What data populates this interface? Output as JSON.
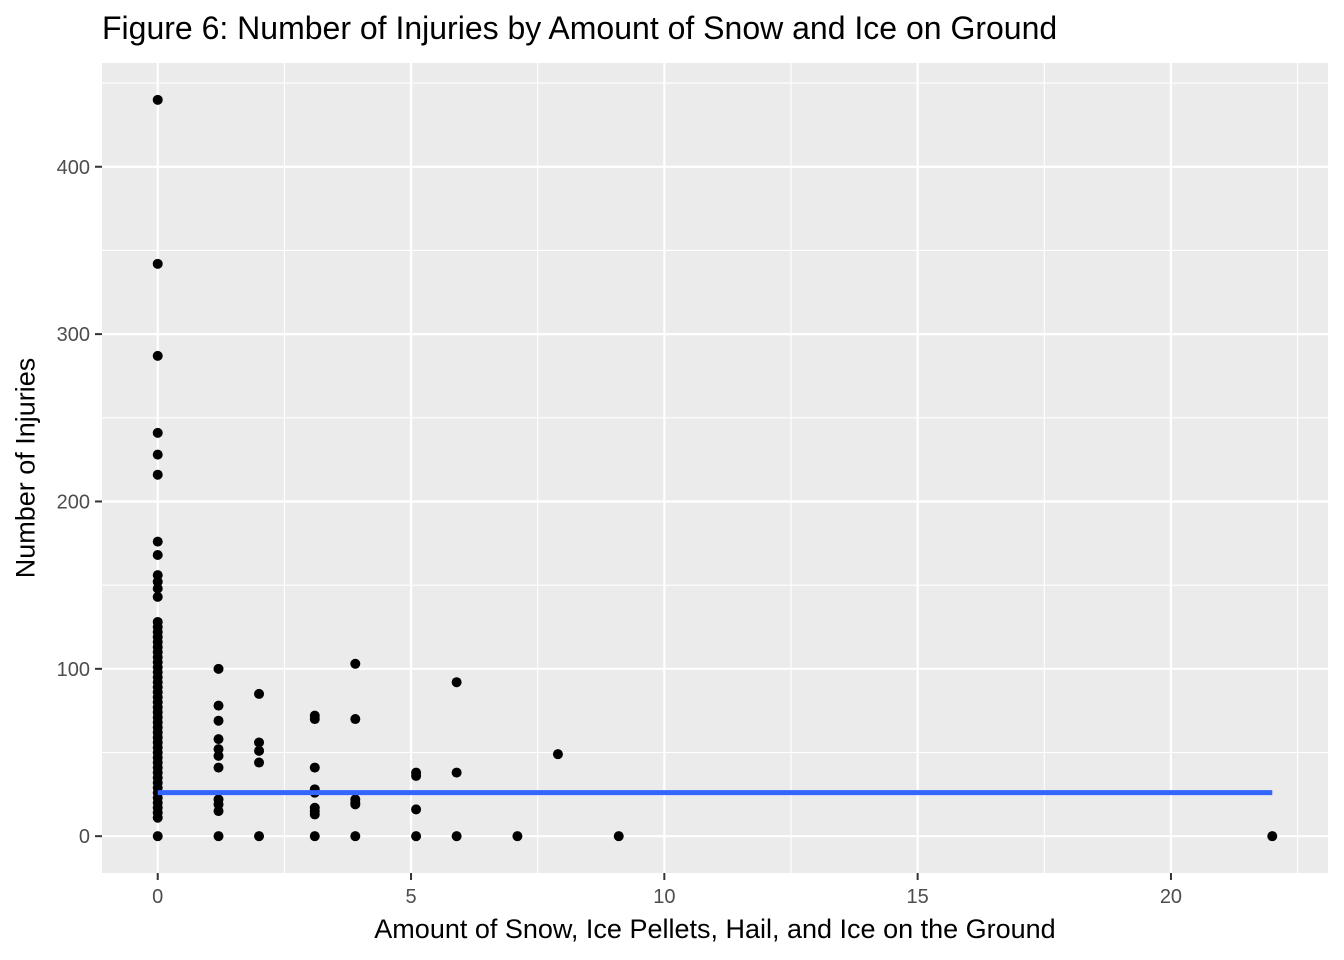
{
  "chart_data": {
    "type": "scatter",
    "title": "Figure 6: Number of Injuries by Amount of Snow and Ice on Ground",
    "xlabel": "Amount of Snow, Ice Pellets, Hail, and Ice on the Ground",
    "ylabel": "Number of Injuries",
    "xlim": [
      -1.1,
      23.1
    ],
    "ylim": [
      -22,
      462
    ],
    "x_ticks": [
      0,
      5,
      10,
      15,
      20
    ],
    "y_ticks": [
      0,
      100,
      200,
      300,
      400
    ],
    "x_tick_labels": [
      "0",
      "5",
      "10",
      "15",
      "20"
    ],
    "y_tick_labels": [
      "0",
      "100",
      "200",
      "300",
      "400"
    ],
    "grid": true,
    "legend": "none",
    "background_color": "#ebebeb",
    "point_color": "#000000",
    "trend_color": "#3366ff",
    "points": [
      {
        "x": 0,
        "y": 440
      },
      {
        "x": 0,
        "y": 342
      },
      {
        "x": 0,
        "y": 287
      },
      {
        "x": 0,
        "y": 241
      },
      {
        "x": 0,
        "y": 228
      },
      {
        "x": 0,
        "y": 216
      },
      {
        "x": 0,
        "y": 176
      },
      {
        "x": 0,
        "y": 168
      },
      {
        "x": 0,
        "y": 156
      },
      {
        "x": 0,
        "y": 152
      },
      {
        "x": 0,
        "y": 148
      },
      {
        "x": 0,
        "y": 143
      },
      {
        "x": 0,
        "y": 128
      },
      {
        "x": 0,
        "y": 125
      },
      {
        "x": 0,
        "y": 122
      },
      {
        "x": 0,
        "y": 119
      },
      {
        "x": 0,
        "y": 116
      },
      {
        "x": 0,
        "y": 113
      },
      {
        "x": 0,
        "y": 110
      },
      {
        "x": 0,
        "y": 107
      },
      {
        "x": 0,
        "y": 104
      },
      {
        "x": 0,
        "y": 101
      },
      {
        "x": 0,
        "y": 98
      },
      {
        "x": 0,
        "y": 95
      },
      {
        "x": 0,
        "y": 92
      },
      {
        "x": 0,
        "y": 89
      },
      {
        "x": 0,
        "y": 86
      },
      {
        "x": 0,
        "y": 83
      },
      {
        "x": 0,
        "y": 80
      },
      {
        "x": 0,
        "y": 77
      },
      {
        "x": 0,
        "y": 74
      },
      {
        "x": 0,
        "y": 71
      },
      {
        "x": 0,
        "y": 68
      },
      {
        "x": 0,
        "y": 65
      },
      {
        "x": 0,
        "y": 62
      },
      {
        "x": 0,
        "y": 59
      },
      {
        "x": 0,
        "y": 56
      },
      {
        "x": 0,
        "y": 53
      },
      {
        "x": 0,
        "y": 50
      },
      {
        "x": 0,
        "y": 47
      },
      {
        "x": 0,
        "y": 44
      },
      {
        "x": 0,
        "y": 41
      },
      {
        "x": 0,
        "y": 38
      },
      {
        "x": 0,
        "y": 35
      },
      {
        "x": 0,
        "y": 32
      },
      {
        "x": 0,
        "y": 29
      },
      {
        "x": 0,
        "y": 26
      },
      {
        "x": 0,
        "y": 23
      },
      {
        "x": 0,
        "y": 20
      },
      {
        "x": 0,
        "y": 17
      },
      {
        "x": 0,
        "y": 14
      },
      {
        "x": 0,
        "y": 11
      },
      {
        "x": 0,
        "y": 0
      },
      {
        "x": 1.2,
        "y": 100
      },
      {
        "x": 1.2,
        "y": 78
      },
      {
        "x": 1.2,
        "y": 69
      },
      {
        "x": 1.2,
        "y": 58
      },
      {
        "x": 1.2,
        "y": 52
      },
      {
        "x": 1.2,
        "y": 48
      },
      {
        "x": 1.2,
        "y": 41
      },
      {
        "x": 1.2,
        "y": 22
      },
      {
        "x": 1.2,
        "y": 19
      },
      {
        "x": 1.2,
        "y": 15
      },
      {
        "x": 1.2,
        "y": 0
      },
      {
        "x": 2.0,
        "y": 85
      },
      {
        "x": 2.0,
        "y": 56
      },
      {
        "x": 2.0,
        "y": 51
      },
      {
        "x": 2.0,
        "y": 44
      },
      {
        "x": 2.0,
        "y": 0
      },
      {
        "x": 3.1,
        "y": 72
      },
      {
        "x": 3.1,
        "y": 70
      },
      {
        "x": 3.1,
        "y": 41
      },
      {
        "x": 3.1,
        "y": 28
      },
      {
        "x": 3.1,
        "y": 26
      },
      {
        "x": 3.1,
        "y": 17
      },
      {
        "x": 3.1,
        "y": 15
      },
      {
        "x": 3.1,
        "y": 13
      },
      {
        "x": 3.1,
        "y": 0
      },
      {
        "x": 3.9,
        "y": 103
      },
      {
        "x": 3.9,
        "y": 70
      },
      {
        "x": 3.9,
        "y": 22
      },
      {
        "x": 3.9,
        "y": 20
      },
      {
        "x": 3.9,
        "y": 19
      },
      {
        "x": 3.9,
        "y": 0
      },
      {
        "x": 5.1,
        "y": 38
      },
      {
        "x": 5.1,
        "y": 36
      },
      {
        "x": 5.1,
        "y": 16
      },
      {
        "x": 5.1,
        "y": 0
      },
      {
        "x": 5.9,
        "y": 92
      },
      {
        "x": 5.9,
        "y": 38
      },
      {
        "x": 5.9,
        "y": 0
      },
      {
        "x": 7.1,
        "y": 0
      },
      {
        "x": 7.9,
        "y": 49
      },
      {
        "x": 9.1,
        "y": 0
      },
      {
        "x": 22,
        "y": 0
      }
    ],
    "trend_line": {
      "x": [
        0,
        22
      ],
      "y": [
        26,
        26
      ]
    }
  }
}
